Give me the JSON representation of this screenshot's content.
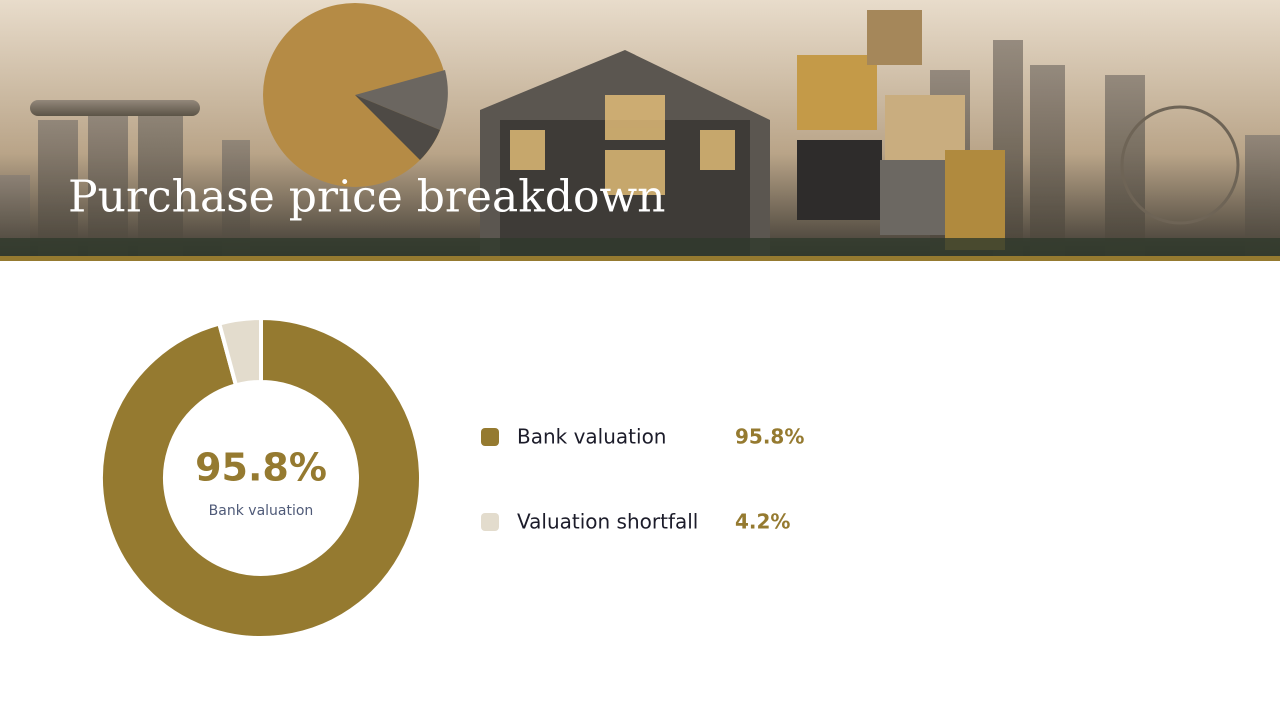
{
  "chart_data": {
    "type": "donut",
    "title": "Purchase price breakdown",
    "categories": [
      "Bank valuation",
      "Valuation shortfall"
    ],
    "values": [
      95.8,
      4.2
    ],
    "value_labels": [
      "95.8%",
      "4.2%"
    ],
    "colors": [
      "#957a30",
      "#e3dccd"
    ]
  }
}
